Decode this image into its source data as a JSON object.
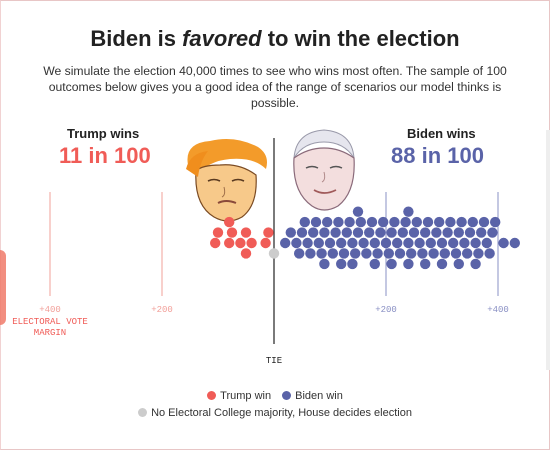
{
  "header": {
    "title_pre": "Biden is ",
    "title_em": "favored",
    "title_post": " to win the election",
    "subtitle": "We simulate the election 40,000 times to see who wins most often. The sample of 100 outcomes below gives you a good idea of the range of scenarios our model thinks is possible."
  },
  "trump": {
    "label": "Trump wins",
    "odds": "11 in 100"
  },
  "biden": {
    "label": "Biden wins",
    "odds": "88 in 100"
  },
  "legend": {
    "trump": "Trump win",
    "biden": "Biden win",
    "tie": "No Electoral College majority, House decides election"
  },
  "colors": {
    "trump": "#f05c57",
    "biden": "#5a63a8",
    "tie": "#cccccc",
    "trump_axis": "#f2a09a",
    "biden_axis": "#8a90c4"
  },
  "chart_data": {
    "type": "scatter",
    "xlabel": "ELECTORAL VOTE MARGIN",
    "zero_label": "TIE",
    "ticks": [
      {
        "value": -400,
        "label": "+400"
      },
      {
        "value": -200,
        "label": "+200"
      },
      {
        "value": 200,
        "label": "+200"
      },
      {
        "value": 400,
        "label": "+400"
      }
    ],
    "xlim": [
      -430,
      430
    ],
    "series": [
      {
        "name": "Trump win",
        "values": [
          -80,
          -60,
          -40,
          -10,
          -105,
          -80,
          -50,
          -15,
          -100,
          -75,
          -50
        ]
      },
      {
        "name": "Tie",
        "values": [
          0
        ]
      },
      {
        "name": "Biden win",
        "values": [
          20,
          45,
          50,
          55,
          65,
          70,
          75,
          80,
          85,
          90,
          95,
          100,
          105,
          110,
          115,
          120,
          125,
          130,
          135,
          140,
          145,
          150,
          155,
          160,
          165,
          170,
          175,
          180,
          185,
          190,
          195,
          200,
          205,
          210,
          215,
          220,
          225,
          230,
          235,
          240,
          245,
          250,
          255,
          260,
          265,
          270,
          275,
          280,
          285,
          290,
          295,
          300,
          305,
          310,
          315,
          320,
          325,
          330,
          335,
          340,
          345,
          350,
          355,
          360,
          365,
          370,
          375,
          380,
          385,
          390,
          395,
          410,
          430,
          30,
          60,
          90,
          120,
          150,
          180,
          210,
          240,
          270,
          300,
          330,
          360,
          40,
          140,
          240
        ]
      }
    ]
  }
}
